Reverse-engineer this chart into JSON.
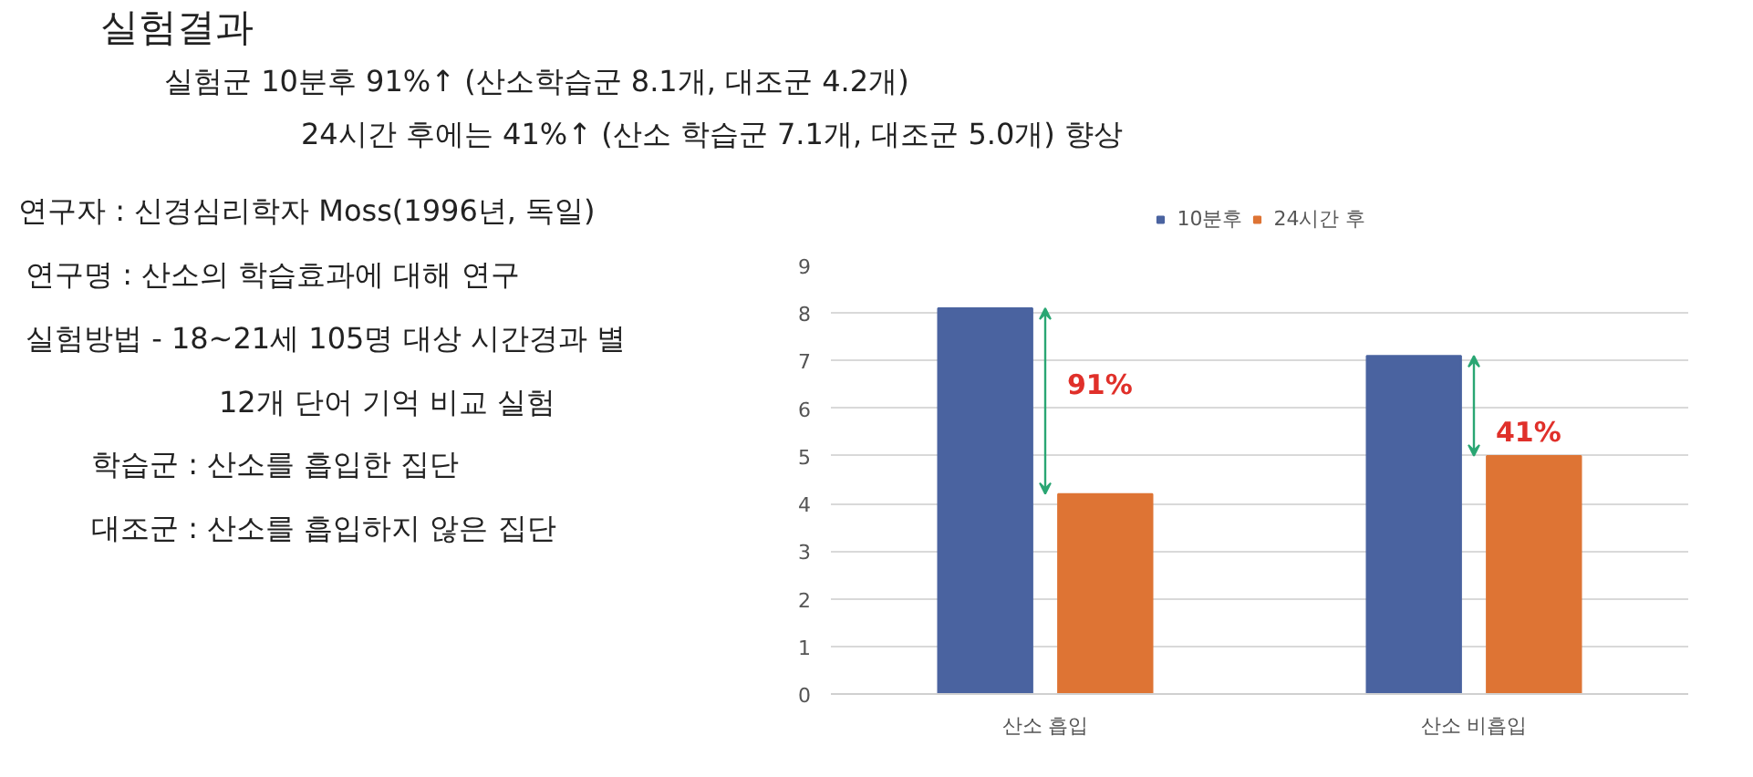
{
  "chart_data": {
    "type": "bar",
    "title": "실험결과",
    "subtitle": "실험군 10분후 91%↑ (산소학습군 8.1개, 대조군 4.2개)\n24시간 후에는 41%↑ (산소 학습군 7.1개, 대조군 5.0개) 향상",
    "categories": [
      "산소 흡입",
      "산소 비흡입"
    ],
    "series": [
      {
        "name": "10분후",
        "color": "#4a63a0",
        "values": [
          8.1,
          7.1
        ]
      },
      {
        "name": "24시간 후",
        "color": "#de7434",
        "values": [
          4.2,
          5.0
        ]
      }
    ],
    "ylim": [
      0,
      9
    ],
    "yticks": [
      0,
      1,
      2,
      3,
      4,
      5,
      6,
      7,
      8,
      9
    ],
    "grid": "y",
    "legend": "top",
    "annotations": [
      "연구자 : 신경심리학자 Moss(1996년, 독일)",
      "연구명 : 산소의 학습효과에 대해 연구",
      "실험방법 - 18~21세 105명 대상 시간경과 별",
      "12개 단어 기억 비교 실험",
      "학습군 : 산소를 흡입한 집단",
      "대조군 : 산소를 흡입하지 않은 집단",
      "91%",
      "41%"
    ]
  }
}
